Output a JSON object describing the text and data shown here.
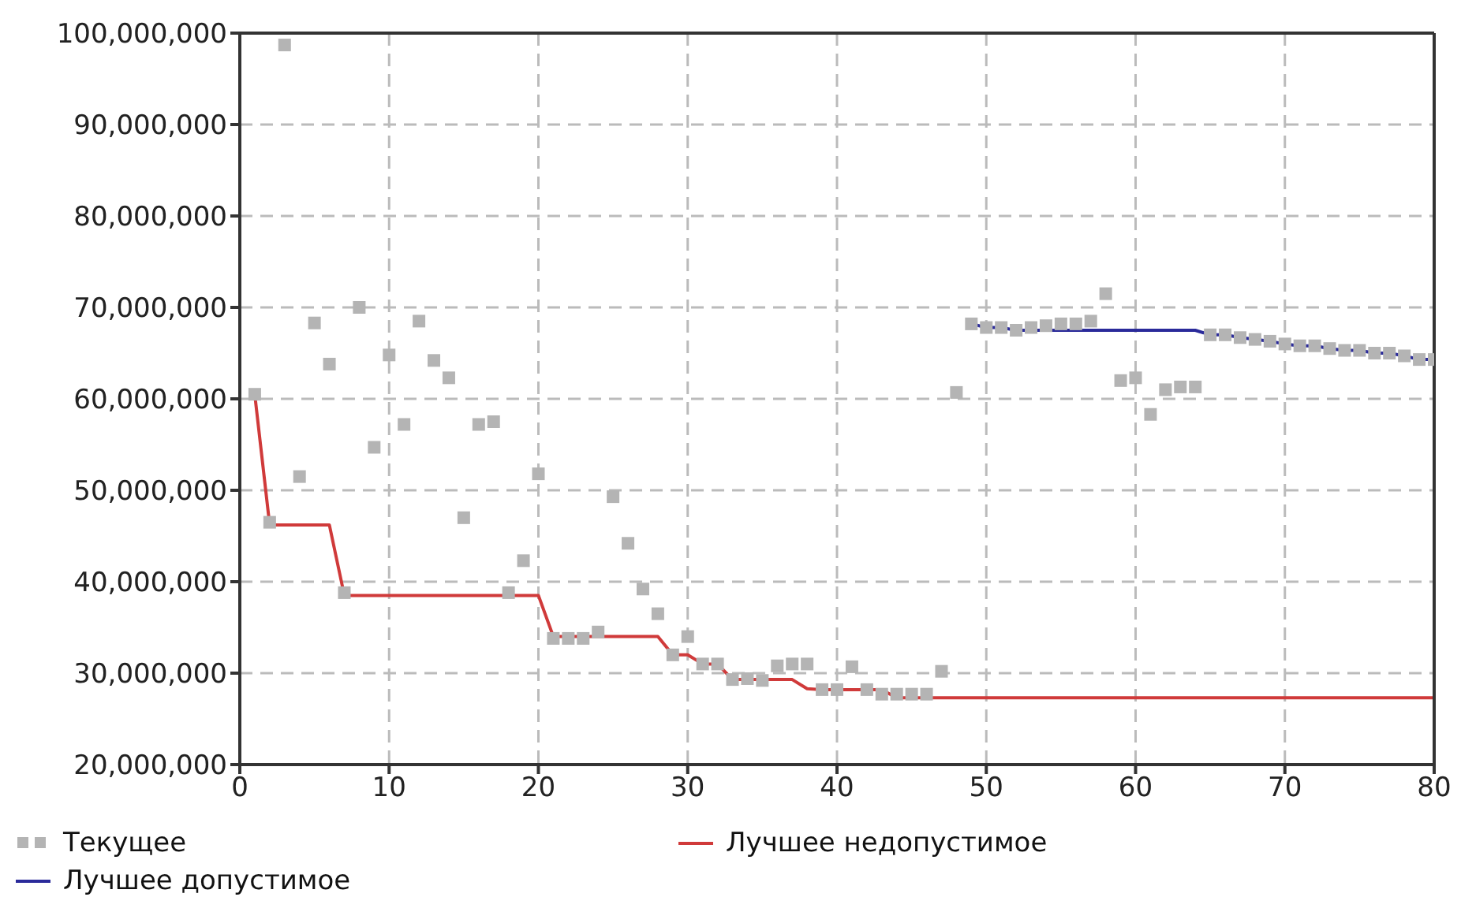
{
  "chart_data": {
    "type": "line",
    "x": [
      1,
      2,
      3,
      4,
      5,
      6,
      7,
      8,
      9,
      10,
      11,
      12,
      13,
      14,
      15,
      16,
      17,
      18,
      19,
      20,
      21,
      22,
      23,
      24,
      25,
      26,
      27,
      28,
      29,
      30,
      31,
      32,
      33,
      34,
      35,
      36,
      37,
      38,
      39,
      40,
      41,
      42,
      43,
      44,
      45,
      46,
      47,
      48,
      49,
      50,
      51,
      52,
      53,
      54,
      55,
      56,
      57,
      58,
      59,
      60,
      61,
      62,
      63,
      64,
      65,
      66,
      67,
      68,
      69,
      70,
      71,
      72,
      73,
      74,
      75,
      76,
      77,
      78,
      79,
      80
    ],
    "series": [
      {
        "name": "Текущее",
        "type": "scatter",
        "color": "#b4b4b4",
        "marker": "square",
        "values": [
          60500000,
          46500000,
          98700000,
          51500000,
          68300000,
          63800000,
          38800000,
          70000000,
          54700000,
          64800000,
          57200000,
          68500000,
          64200000,
          62300000,
          47000000,
          57200000,
          57500000,
          38800000,
          42300000,
          51800000,
          33800000,
          33800000,
          33800000,
          34500000,
          49300000,
          44200000,
          39200000,
          36500000,
          32000000,
          34000000,
          31000000,
          31000000,
          29300000,
          29400000,
          29200000,
          30800000,
          31000000,
          31000000,
          28200000,
          28200000,
          30700000,
          28200000,
          27700000,
          27700000,
          27700000,
          27700000,
          30200000,
          60700000,
          68200000,
          67800000,
          67800000,
          67500000,
          67800000,
          68000000,
          68200000,
          68200000,
          68500000,
          71500000,
          62000000,
          62300000,
          58300000,
          61000000,
          61300000,
          61300000,
          67000000,
          67000000,
          66700000,
          66500000,
          66300000,
          66000000,
          65800000,
          65800000,
          65500000,
          65300000,
          65300000,
          65000000,
          65000000,
          64700000,
          64300000,
          64300000
        ]
      },
      {
        "name": "Лучшее недопустимое",
        "color": "#d03a3a",
        "marker": "none",
        "values": [
          60500000,
          46200000,
          46200000,
          46200000,
          46200000,
          46200000,
          38500000,
          38500000,
          38500000,
          38500000,
          38500000,
          38500000,
          38500000,
          38500000,
          38500000,
          38500000,
          38500000,
          38500000,
          38500000,
          38500000,
          34000000,
          34000000,
          34000000,
          34000000,
          34000000,
          34000000,
          34000000,
          34000000,
          32000000,
          32000000,
          31000000,
          31000000,
          29300000,
          29300000,
          29300000,
          29300000,
          29300000,
          28300000,
          28200000,
          28200000,
          28200000,
          28200000,
          28200000,
          27300000,
          27300000,
          27300000,
          27300000,
          27300000,
          27300000,
          27300000,
          27300000,
          27300000,
          27300000,
          27300000,
          27300000,
          27300000,
          27300000,
          27300000,
          27300000,
          27300000,
          27300000,
          27300000,
          27300000,
          27300000,
          27300000,
          27300000,
          27300000,
          27300000,
          27300000,
          27300000,
          27300000,
          27300000,
          27300000,
          27300000,
          27300000,
          27300000,
          27300000,
          27300000,
          27300000,
          27300000
        ]
      },
      {
        "name": "Лучшее допустимое",
        "color": "#2a2a9a",
        "marker": "none",
        "values": [
          null,
          null,
          null,
          null,
          null,
          null,
          null,
          null,
          null,
          null,
          null,
          null,
          null,
          null,
          null,
          null,
          null,
          null,
          null,
          null,
          null,
          null,
          null,
          null,
          null,
          null,
          null,
          null,
          null,
          null,
          null,
          null,
          null,
          null,
          null,
          null,
          null,
          null,
          null,
          null,
          null,
          null,
          null,
          null,
          null,
          null,
          null,
          null,
          68200000,
          67800000,
          67800000,
          67500000,
          67500000,
          67500000,
          67500000,
          67500000,
          67500000,
          67500000,
          67500000,
          67500000,
          67500000,
          67500000,
          67500000,
          67500000,
          67000000,
          67000000,
          66700000,
          66500000,
          66300000,
          66000000,
          65800000,
          65800000,
          65500000,
          65300000,
          65300000,
          65000000,
          65000000,
          64700000,
          64300000,
          64300000
        ]
      }
    ],
    "xlim": [
      0,
      80
    ],
    "xticks": [
      0,
      10,
      20,
      30,
      40,
      50,
      60,
      70,
      80
    ],
    "ylim": [
      20000000,
      100000000
    ],
    "yticks": [
      {
        "value": 20000000,
        "label": "20,000,000"
      },
      {
        "value": 30000000,
        "label": "30,000,000"
      },
      {
        "value": 40000000,
        "label": "40,000,000"
      },
      {
        "value": 50000000,
        "label": "50,000,000"
      },
      {
        "value": 60000000,
        "label": "60,000,000"
      },
      {
        "value": 70000000,
        "label": "70,000,000"
      },
      {
        "value": 80000000,
        "label": "80,000,000"
      },
      {
        "value": 90000000,
        "label": "90,000,000"
      },
      {
        "value": 100000000,
        "label": "100,000,000"
      }
    ],
    "grid": true,
    "legend": "bottom",
    "line_style": "solid"
  }
}
